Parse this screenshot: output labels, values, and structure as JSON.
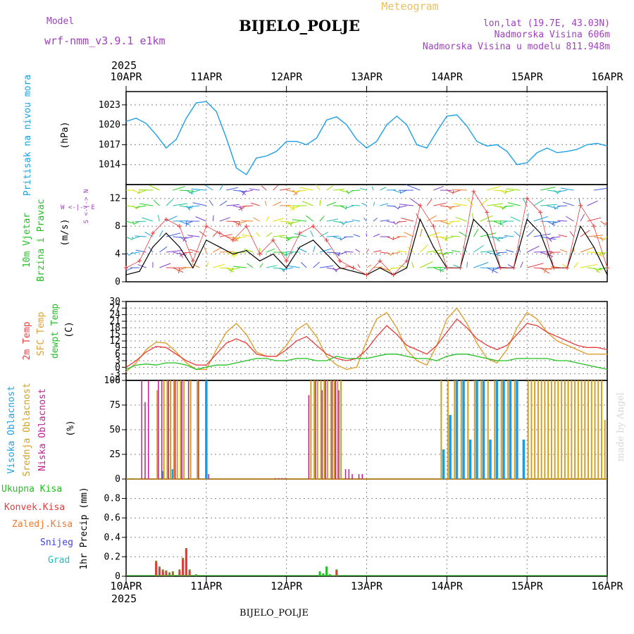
{
  "header": {
    "model_label": "Model",
    "model_name": "wrf-nmm_v3.9.1 e1km",
    "title": "BIJELO_POLJE",
    "subtitle": "Meteogram",
    "lonlat": "lon,lat (19.7E, 43.03N)",
    "elevation": "Nadmorska Visina 606m",
    "model_elevation": "Nadmorska Visina u modelu 811.948m",
    "year": "2025",
    "footer_station": "BIJELO_POLJE",
    "watermark": "made by Angel"
  },
  "time_axis": {
    "labels": [
      "10APR",
      "11APR",
      "12APR",
      "13APR",
      "14APR",
      "15APR",
      "16APR"
    ],
    "year": "2025"
  },
  "colors": {
    "pressure": "#1ea0e6",
    "temp2m": "#e83c3c",
    "sfc": "#e0a030",
    "dewpt": "#22c022",
    "high_cloud": "#1e9be6",
    "mid_cloud": "#d4a020",
    "low_cloud": "#c02090",
    "rain": "#1ec01e",
    "conv": "#e03c3c",
    "frz": "#f07830",
    "snow": "#4040e0",
    "grad": "#20c0c0",
    "wind_speed": "#000000",
    "gust": "#e83c3c",
    "purple_text": "#a040c0"
  },
  "panels": {
    "pressure": {
      "label": "Pritisak na nivou mora",
      "unit": "(hPa)"
    },
    "wind": {
      "label1": "10m Vjetar",
      "label2": "Brzina i Pravac",
      "unit": "(m/s)",
      "compass": "W <-|-> E",
      "compass_v": "S <-|-> N"
    },
    "temp": {
      "label1": "2m Temp",
      "label2": "SFC Temp",
      "label3": "dewpt Temp",
      "unit": "(C)"
    },
    "cloud": {
      "label1": "Visoka Oblacnost",
      "label2": "Srednja Oblacnost",
      "label3": "Niska Oblacnost",
      "unit": "(%)"
    },
    "precip": {
      "legend": [
        "Ukupna Kisa",
        "Konvek.Kisa",
        "Zaledj.Kisa",
        "Snijeg",
        "Grad"
      ],
      "unit": "1hr Precip (mm)"
    }
  },
  "chart_data": [
    {
      "type": "line",
      "name": "pressure",
      "x_unit": "hours since 10APR 00",
      "ylim": [
        1011,
        1025
      ],
      "yticks": [
        1014,
        1017,
        1020,
        1023
      ],
      "series": [
        {
          "x": [
            0,
            3,
            6,
            9,
            12,
            15,
            18,
            21,
            24,
            27,
            30,
            33,
            36,
            39,
            42,
            45,
            48,
            51,
            54,
            57,
            60,
            63,
            66,
            69,
            72,
            75,
            78,
            81,
            84,
            87,
            90,
            93,
            96,
            99,
            102,
            105,
            108,
            111,
            114,
            117,
            120,
            123,
            126,
            129,
            132,
            135,
            138,
            141,
            144
          ],
          "values": [
            1020.5,
            1021,
            1020.2,
            1018.5,
            1016.5,
            1017.8,
            1021,
            1023.3,
            1023.5,
            1022,
            1018,
            1013.5,
            1012.5,
            1015,
            1015.3,
            1016,
            1017.5,
            1017.5,
            1017,
            1018,
            1020.7,
            1021.2,
            1020,
            1017.8,
            1016.5,
            1017.5,
            1020,
            1021.3,
            1020,
            1017,
            1016.5,
            1019,
            1021.3,
            1021.5,
            1019.8,
            1017.5,
            1016.8,
            1017,
            1016,
            1014,
            1014.3,
            1015.8,
            1016.5,
            1015.8,
            1016,
            1016.3,
            1017,
            1017.2,
            1016.8
          ]
        }
      ]
    },
    {
      "type": "line",
      "name": "wind",
      "x_unit": "hours since 10APR 00",
      "ylim": [
        0,
        14
      ],
      "yticks": [
        0,
        4,
        8,
        12
      ],
      "series": [
        {
          "name": "speed",
          "x": [
            0,
            4,
            8,
            12,
            16,
            20,
            24,
            28,
            32,
            36,
            40,
            44,
            48,
            52,
            56,
            60,
            64,
            68,
            72,
            76,
            80,
            84,
            88,
            92,
            96,
            100,
            104,
            108,
            112,
            116,
            120,
            124,
            128,
            132,
            136,
            140,
            144
          ],
          "values": [
            1,
            1.5,
            5,
            7,
            5,
            2,
            6,
            5,
            4,
            4.5,
            3,
            4,
            2,
            5,
            6,
            4,
            2,
            1.5,
            1,
            2,
            1,
            2,
            9,
            5,
            2,
            2,
            9,
            7,
            2,
            2,
            9,
            7,
            2,
            2,
            8,
            5,
            1
          ]
        },
        {
          "name": "gust",
          "x": [
            0,
            4,
            8,
            12,
            16,
            20,
            24,
            28,
            32,
            36,
            40,
            44,
            48,
            52,
            56,
            60,
            64,
            68,
            72,
            76,
            80,
            84,
            88,
            92,
            96,
            100,
            104,
            108,
            112,
            116,
            120,
            124,
            128,
            132,
            136,
            140,
            144
          ],
          "values": [
            2,
            3,
            7,
            9,
            8,
            3,
            8,
            7,
            6,
            8,
            4,
            6,
            3,
            7,
            8,
            6,
            3,
            2,
            1,
            3,
            1,
            3,
            11,
            8,
            2,
            2,
            13,
            10,
            2,
            2,
            12,
            10,
            2,
            2,
            11,
            8,
            2
          ]
        }
      ]
    },
    {
      "type": "line",
      "name": "temperature",
      "x_unit": "hours since 10APR 00",
      "ylim": [
        -6,
        30
      ],
      "yticks": [
        -6,
        -3,
        0,
        3,
        6,
        9,
        12,
        15,
        18,
        21,
        24,
        27,
        30
      ],
      "series": [
        {
          "name": "2m",
          "x": [
            0,
            3,
            6,
            9,
            12,
            15,
            18,
            21,
            24,
            27,
            30,
            33,
            36,
            39,
            42,
            45,
            48,
            51,
            54,
            57,
            60,
            63,
            66,
            69,
            72,
            75,
            78,
            81,
            84,
            87,
            90,
            93,
            96,
            99,
            102,
            105,
            108,
            111,
            114,
            117,
            120,
            123,
            126,
            129,
            132,
            135,
            138,
            141,
            144
          ],
          "values": [
            0,
            3,
            7,
            9.5,
            9,
            6,
            3,
            1,
            1,
            6,
            11,
            13,
            11,
            6,
            5,
            5,
            8,
            12,
            14,
            10,
            6,
            4,
            3,
            4,
            8,
            14,
            19,
            15,
            10,
            8,
            6,
            10,
            16,
            22,
            18,
            13,
            10,
            8,
            10,
            15,
            20,
            19,
            16,
            14,
            12,
            10,
            9,
            9,
            8
          ]
        },
        {
          "name": "SFC",
          "x": [
            0,
            3,
            6,
            9,
            12,
            15,
            18,
            21,
            24,
            27,
            30,
            33,
            36,
            39,
            42,
            45,
            48,
            51,
            54,
            57,
            60,
            63,
            66,
            69,
            72,
            75,
            78,
            81,
            84,
            87,
            90,
            93,
            96,
            99,
            102,
            105,
            108,
            111,
            114,
            117,
            120,
            123,
            126,
            129,
            132,
            135,
            138,
            141,
            144
          ],
          "values": [
            -2,
            2,
            8,
            11.5,
            11,
            7,
            2,
            -1,
            -1,
            8,
            16,
            20,
            15,
            7,
            5,
            5,
            10,
            17,
            20,
            14,
            5,
            1,
            -1,
            0,
            12,
            22,
            25,
            18,
            8,
            3,
            1,
            10,
            22,
            27,
            20,
            11,
            4,
            2,
            8,
            18,
            25,
            22,
            16,
            12,
            10,
            8,
            6,
            6,
            6
          ]
        },
        {
          "name": "dewpt",
          "x": [
            0,
            3,
            6,
            9,
            12,
            15,
            18,
            21,
            24,
            27,
            30,
            33,
            36,
            39,
            42,
            45,
            48,
            51,
            54,
            57,
            60,
            63,
            66,
            69,
            72,
            75,
            78,
            81,
            84,
            87,
            90,
            93,
            96,
            99,
            102,
            105,
            108,
            111,
            114,
            117,
            120,
            123,
            126,
            129,
            132,
            135,
            138,
            141,
            144
          ],
          "values": [
            -1,
            1,
            1.5,
            1,
            2,
            2,
            1,
            -1,
            0,
            1,
            1,
            2,
            3,
            4,
            4,
            3,
            3,
            4,
            4,
            3,
            3,
            5,
            4,
            4,
            4,
            5,
            6,
            6,
            5,
            4,
            4,
            3,
            5,
            6,
            6,
            5,
            4,
            3,
            3,
            4,
            4,
            4,
            4,
            3,
            3,
            2,
            1,
            0,
            -1
          ]
        }
      ]
    },
    {
      "type": "bar",
      "name": "cloud",
      "x_unit": "hours since 10APR 00",
      "ylim": [
        0,
        100
      ],
      "yticks": [
        0,
        25,
        50,
        75,
        100
      ],
      "series": [
        {
          "name": "high",
          "x": [
            11,
            14,
            24,
            95,
            97,
            99,
            101,
            103,
            105,
            107,
            109,
            111,
            113,
            115,
            117,
            119
          ],
          "values": [
            8,
            10,
            100,
            30,
            65,
            100,
            100,
            40,
            100,
            100,
            40,
            100,
            100,
            100,
            100,
            40
          ]
        },
        {
          "name": "mid",
          "x": [
            9,
            11,
            12,
            13,
            14,
            15,
            16,
            17,
            19,
            21,
            55,
            56,
            57,
            58,
            59,
            60,
            61,
            62,
            63,
            64,
            94,
            96,
            98,
            100,
            102,
            104,
            106,
            108,
            110,
            112,
            114,
            116,
            120,
            121,
            122,
            123,
            124,
            125,
            126,
            127,
            128,
            129,
            130,
            131,
            132,
            133,
            134,
            135,
            136,
            137,
            138,
            139,
            140,
            141,
            142,
            143
          ],
          "values": [
            90,
            100,
            100,
            100,
            100,
            100,
            100,
            100,
            100,
            100,
            100,
            100,
            100,
            100,
            100,
            100,
            100,
            100,
            100,
            100,
            100,
            100,
            100,
            100,
            100,
            100,
            100,
            100,
            100,
            100,
            100,
            100,
            100,
            100,
            100,
            100,
            100,
            100,
            100,
            100,
            100,
            100,
            100,
            100,
            100,
            100,
            100,
            100,
            100,
            100,
            100,
            100,
            100,
            100,
            100,
            60
          ]
        },
        {
          "name": "low",
          "x": [
            5,
            6,
            7,
            10,
            11,
            13,
            15,
            17,
            19,
            22,
            25,
            45,
            46,
            47,
            48,
            55,
            57,
            59,
            60,
            62,
            63,
            64,
            66,
            67,
            68,
            70,
            71
          ],
          "values": [
            100,
            78,
            100,
            100,
            100,
            100,
            100,
            100,
            100,
            100,
            5,
            1,
            1,
            1,
            1,
            85,
            100,
            90,
            100,
            100,
            100,
            90,
            10,
            10,
            5,
            5,
            5
          ]
        }
      ]
    },
    {
      "type": "bar",
      "name": "precipitation",
      "x_unit": "hours since 10APR 00",
      "ylim": [
        0,
        1.0
      ],
      "yticks": [
        0,
        0.2,
        0.4,
        0.6,
        0.8
      ],
      "series": [
        {
          "name": "total",
          "x": [
            9,
            10,
            11,
            12,
            13,
            14,
            16,
            17,
            18,
            19,
            21,
            58,
            59,
            60,
            61,
            62,
            63
          ],
          "values": [
            0.16,
            0.1,
            0.07,
            0.06,
            0.04,
            0.05,
            0.07,
            0.19,
            0.29,
            0.07,
            0.02,
            0.05,
            0.03,
            0.1,
            0.02,
            0.01,
            0.07
          ]
        },
        {
          "name": "convective",
          "x": [
            9,
            10,
            11,
            12,
            16,
            17,
            18,
            19,
            62,
            63
          ],
          "values": [
            0.14,
            0.08,
            0.05,
            0.04,
            0.05,
            0.17,
            0.28,
            0.05,
            0.01,
            0.06
          ]
        }
      ]
    }
  ]
}
